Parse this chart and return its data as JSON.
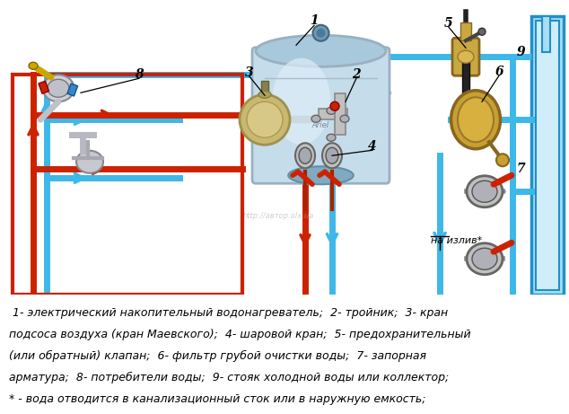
{
  "background_color": "#ffffff",
  "fig_width": 6.34,
  "fig_height": 4.61,
  "dpi": 100,
  "legend_lines": [
    " 1- электрический накопительный водонагреватель;  2- тройник;  3- кран",
    "подсоса воздуха (кран Маевского);  4- шаровой кран;  5- предохранительный",
    "(или обратный) клапан;  6- фильтр грубой очистки воды;  7- запорная",
    "арматура;  8- потребители воды;  9- стояк холодной воды или коллектор;",
    "* - вода отводится в канализационный сток или в наружную емкость;"
  ],
  "na_izliv_label": "на излив*",
  "watermark": "http://автор.olx.ua",
  "cold_color": "#3db8e8",
  "hot_color": "#cc2200",
  "bg_color": "#f0f8ff",
  "pipe_lw": 5,
  "arrow_lw": 5,
  "legend_font_size": 9.0,
  "legend_italic": true,
  "border_lw": 3,
  "riser_color": "#5bc8f0",
  "riser_dark": "#2090c8"
}
